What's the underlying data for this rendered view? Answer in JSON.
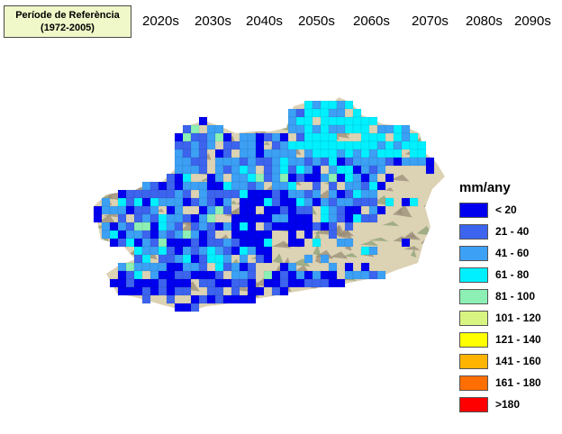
{
  "reference": {
    "line1": "Període de Referència",
    "line2": "(1972-2005)"
  },
  "decades": [
    "2020s",
    "2030s",
    "2040s",
    "2050s",
    "2060s",
    "2070s",
    "2080s",
    "2090s"
  ],
  "legend": {
    "title": "mm/any",
    "classes": [
      {
        "label": "< 20",
        "color": "#0000ee"
      },
      {
        "label": "21 - 40",
        "color": "#3c64ee"
      },
      {
        "label": "41 - 60",
        "color": "#3ca0f5"
      },
      {
        "label": "61 - 80",
        "color": "#00f0ff"
      },
      {
        "label": "81 - 100",
        "color": "#8cf0b4"
      },
      {
        "label": "101 - 120",
        "color": "#d8f582"
      },
      {
        "label": "121 - 140",
        "color": "#ffff00"
      },
      {
        "label": "141 - 160",
        "color": "#ffb400"
      },
      {
        "label": "161 - 180",
        "color": "#ff6e00"
      },
      {
        "label": ">180",
        "color": "#ff0000"
      }
    ]
  },
  "terrain_colors": {
    "relief_light": "#dcd2b4",
    "relief_shadow": "#9a8c78",
    "green_relief": "#8ca078"
  }
}
